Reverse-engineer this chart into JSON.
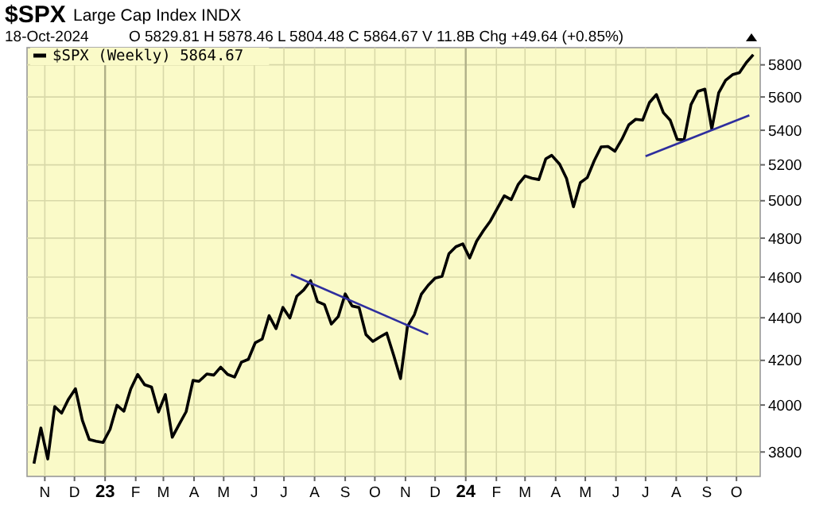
{
  "chart_data": {
    "type": "line",
    "title": "$SPX",
    "subtitle": "Large Cap Index INDX",
    "annotations": [
      "18-Oct-2024",
      "O 5829.81 H 5878.46 L 5804.48 C 5864.67 V 11.8B Chg +49.64 (+0.85%)"
    ],
    "xlim": [
      "2022-10-14",
      "2024-10-25"
    ],
    "xticks": [
      {
        "value": "2022-11-01",
        "label": "N"
      },
      {
        "value": "2022-12-01",
        "label": "D"
      },
      {
        "value": "2023-01-01",
        "label": "23"
      },
      {
        "value": "2023-02-01",
        "label": "F"
      },
      {
        "value": "2023-03-01",
        "label": "M"
      },
      {
        "value": "2023-04-01",
        "label": "A"
      },
      {
        "value": "2023-05-01",
        "label": "M"
      },
      {
        "value": "2023-06-01",
        "label": "J"
      },
      {
        "value": "2023-07-01",
        "label": "J"
      },
      {
        "value": "2023-08-01",
        "label": "A"
      },
      {
        "value": "2023-09-01",
        "label": "S"
      },
      {
        "value": "2023-10-01",
        "label": "O"
      },
      {
        "value": "2023-11-01",
        "label": "N"
      },
      {
        "value": "2023-12-01",
        "label": "D"
      },
      {
        "value": "2024-01-01",
        "label": "24"
      },
      {
        "value": "2024-02-01",
        "label": "F"
      },
      {
        "value": "2024-03-01",
        "label": "M"
      },
      {
        "value": "2024-04-01",
        "label": "A"
      },
      {
        "value": "2024-05-01",
        "label": "M"
      },
      {
        "value": "2024-06-01",
        "label": "J"
      },
      {
        "value": "2024-07-01",
        "label": "J"
      },
      {
        "value": "2024-08-01",
        "label": "A"
      },
      {
        "value": "2024-09-01",
        "label": "S"
      },
      {
        "value": "2024-10-01",
        "label": "O"
      }
    ],
    "ylim": [
      3700,
      5910
    ],
    "yticks": [
      3800,
      4000,
      4200,
      4400,
      4600,
      4800,
      5000,
      5200,
      5400,
      5600,
      5800
    ],
    "log": true,
    "grid": true,
    "legend": "top left",
    "marker": "none",
    "series": [
      {
        "name": "$SPX (Weekly) 5864.67",
        "color": "#000000",
        "x": [
          "2022-10-21",
          "2022-10-28",
          "2022-11-04",
          "2022-11-11",
          "2022-11-18",
          "2022-11-25",
          "2022-12-02",
          "2022-12-09",
          "2022-12-16",
          "2022-12-23",
          "2022-12-30",
          "2023-01-06",
          "2023-01-13",
          "2023-01-20",
          "2023-01-27",
          "2023-02-03",
          "2023-02-10",
          "2023-02-17",
          "2023-02-24",
          "2023-03-03",
          "2023-03-10",
          "2023-03-17",
          "2023-03-24",
          "2023-03-31",
          "2023-04-06",
          "2023-04-14",
          "2023-04-21",
          "2023-04-28",
          "2023-05-05",
          "2023-05-12",
          "2023-05-19",
          "2023-05-26",
          "2023-06-02",
          "2023-06-09",
          "2023-06-16",
          "2023-06-23",
          "2023-06-30",
          "2023-07-07",
          "2023-07-14",
          "2023-07-21",
          "2023-07-28",
          "2023-08-04",
          "2023-08-11",
          "2023-08-18",
          "2023-08-25",
          "2023-09-01",
          "2023-09-08",
          "2023-09-15",
          "2023-09-22",
          "2023-09-29",
          "2023-10-06",
          "2023-10-13",
          "2023-10-20",
          "2023-10-27",
          "2023-11-03",
          "2023-11-10",
          "2023-11-17",
          "2023-11-24",
          "2023-12-01",
          "2023-12-08",
          "2023-12-15",
          "2023-12-22",
          "2023-12-29",
          "2024-01-05",
          "2024-01-12",
          "2024-01-19",
          "2024-01-26",
          "2024-02-02",
          "2024-02-09",
          "2024-02-16",
          "2024-02-23",
          "2024-03-01",
          "2024-03-08",
          "2024-03-15",
          "2024-03-22",
          "2024-03-28",
          "2024-04-05",
          "2024-04-12",
          "2024-04-19",
          "2024-04-26",
          "2024-05-03",
          "2024-05-10",
          "2024-05-17",
          "2024-05-24",
          "2024-05-31",
          "2024-06-07",
          "2024-06-14",
          "2024-06-21",
          "2024-06-28",
          "2024-07-05",
          "2024-07-12",
          "2024-07-19",
          "2024-07-26",
          "2024-08-02",
          "2024-08-09",
          "2024-08-16",
          "2024-08-23",
          "2024-08-30",
          "2024-09-06",
          "2024-09-13",
          "2024-09-20",
          "2024-09-27",
          "2024-10-04",
          "2024-10-11",
          "2024-10-18"
        ],
        "values": [
          3752,
          3901,
          3771,
          3993,
          3965,
          4026,
          4072,
          3934,
          3852,
          3845,
          3840,
          3895,
          3999,
          3973,
          4071,
          4136,
          4090,
          4079,
          3970,
          4046,
          3862,
          3917,
          3971,
          4109,
          4105,
          4138,
          4133,
          4169,
          4136,
          4124,
          4192,
          4205,
          4282,
          4299,
          4410,
          4348,
          4450,
          4399,
          4505,
          4536,
          4582,
          4478,
          4464,
          4370,
          4406,
          4516,
          4457,
          4450,
          4320,
          4288,
          4308,
          4327,
          4224,
          4117,
          4358,
          4415,
          4514,
          4559,
          4595,
          4604,
          4719,
          4755,
          4770,
          4697,
          4784,
          4840,
          4891,
          4959,
          5027,
          5006,
          5089,
          5137,
          5124,
          5117,
          5234,
          5254,
          5204,
          5123,
          4967,
          5100,
          5128,
          5223,
          5303,
          5305,
          5278,
          5347,
          5432,
          5465,
          5460,
          5567,
          5615,
          5505,
          5459,
          5346,
          5344,
          5554,
          5635,
          5648,
          5408,
          5626,
          5703,
          5738,
          5751,
          5815,
          5864.67
        ]
      },
      {
        "type": "line",
        "color": "#2e2e9e",
        "x": [
          "2023-07-08",
          "2023-11-24"
        ],
        "values": [
          4613,
          4321
        ]
      },
      {
        "type": "line",
        "color": "#2e2e9e",
        "x": [
          "2024-07-01",
          "2024-10-14"
        ],
        "values": [
          5249,
          5489
        ]
      }
    ]
  }
}
